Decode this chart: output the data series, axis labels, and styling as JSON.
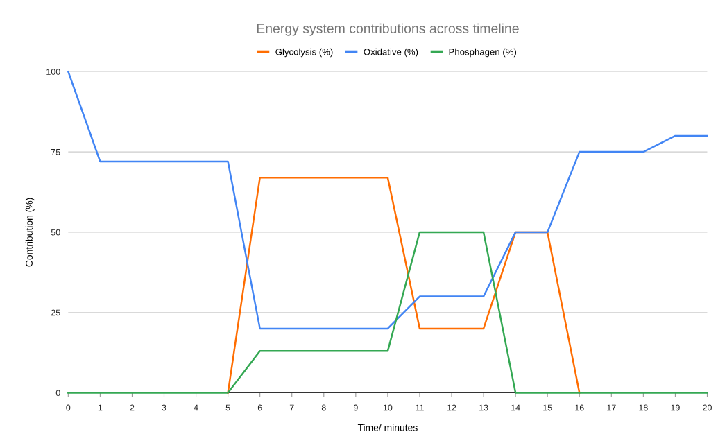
{
  "chart_data": {
    "type": "line",
    "title": "Energy system contributions across timeline",
    "xlabel": "Time/ minutes",
    "ylabel": "Contribution (%)",
    "x": [
      0,
      1,
      2,
      3,
      4,
      5,
      6,
      7,
      8,
      9,
      10,
      11,
      12,
      13,
      14,
      15,
      16,
      17,
      18,
      19,
      20
    ],
    "series": [
      {
        "name": "Glycolysis (%)",
        "color": "#ff6d01",
        "values": [
          null,
          null,
          null,
          null,
          null,
          0,
          67,
          67,
          67,
          67,
          67,
          20,
          20,
          20,
          50,
          50,
          0,
          null,
          null,
          null,
          null
        ]
      },
      {
        "name": "Oxidative (%)",
        "color": "#4285f4",
        "values": [
          100,
          72,
          72,
          72,
          72,
          72,
          20,
          20,
          20,
          20,
          20,
          30,
          30,
          30,
          50,
          50,
          75,
          75,
          75,
          80,
          80
        ]
      },
      {
        "name": "Phosphagen (%)",
        "color": "#34a853",
        "values": [
          0,
          0,
          0,
          0,
          0,
          0,
          13,
          13,
          13,
          13,
          13,
          50,
          50,
          50,
          0,
          0,
          0,
          0,
          0,
          0,
          0
        ]
      }
    ],
    "xlim": [
      0,
      20
    ],
    "xticks": [
      0,
      1,
      2,
      3,
      4,
      5,
      6,
      7,
      8,
      9,
      10,
      11,
      12,
      13,
      14,
      15,
      16,
      17,
      18,
      19,
      20
    ],
    "ylim": [
      0,
      100
    ],
    "yticks": [
      0,
      25,
      50,
      75,
      100
    ],
    "grid": "y",
    "legend": "top",
    "marker": "none",
    "line_style": "solid"
  }
}
